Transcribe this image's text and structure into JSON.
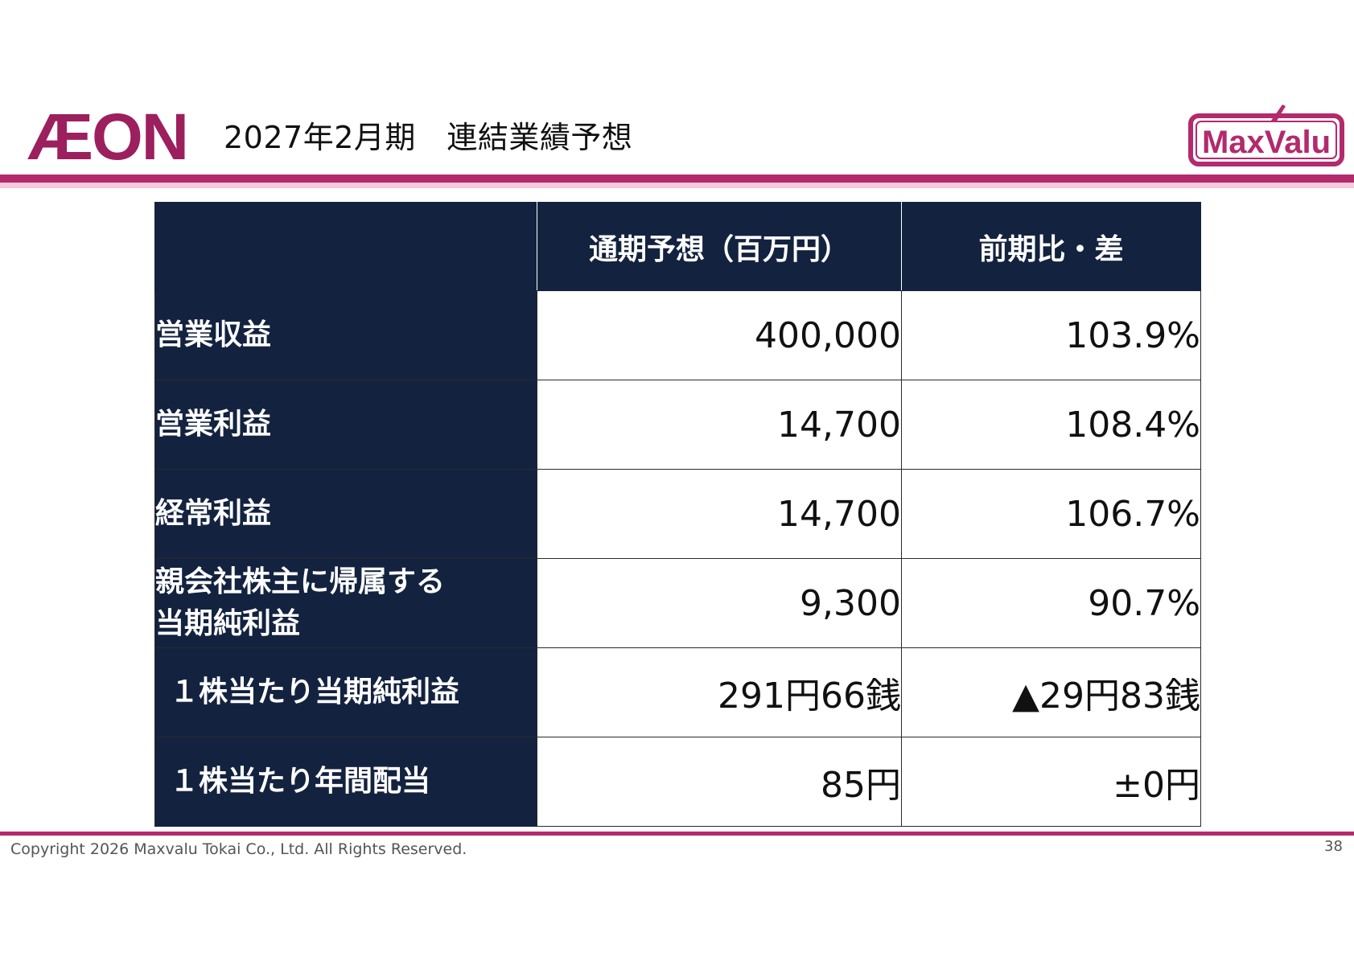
{
  "header": {
    "aeon_logo_text": "ÆON",
    "title": "2027年2月期　連結業績予想",
    "maxvalu_logo_text": "MaxValu"
  },
  "table": {
    "columns": [
      "",
      "通期予想（百万円）",
      "前期比・差"
    ],
    "rows": [
      {
        "label": "営業収益",
        "forecast": "400,000",
        "change": "103.9%"
      },
      {
        "label": "営業利益",
        "forecast": "14,700",
        "change": "108.4%"
      },
      {
        "label": "経常利益",
        "forecast": "14,700",
        "change": "106.7%"
      },
      {
        "label_line1": "親会社株主に帰属する",
        "label_line2": "当期純利益",
        "forecast": "9,300",
        "change": "90.7%"
      },
      {
        "label": "１株当たり当期純利益",
        "forecast": "291円66銭",
        "change": "▲29円83銭"
      },
      {
        "label": "１株当たり年間配当",
        "forecast": "85円",
        "change": "±0円"
      }
    ]
  },
  "footer": {
    "copyright": "Copyright 2026 Maxvalu Tokai Co., Ltd. All Rights Reserved.",
    "page_number": "38"
  },
  "colors": {
    "brand_magenta": "#b32a6d",
    "navy": "#13223f",
    "pink_band": "#f6c9dc"
  }
}
